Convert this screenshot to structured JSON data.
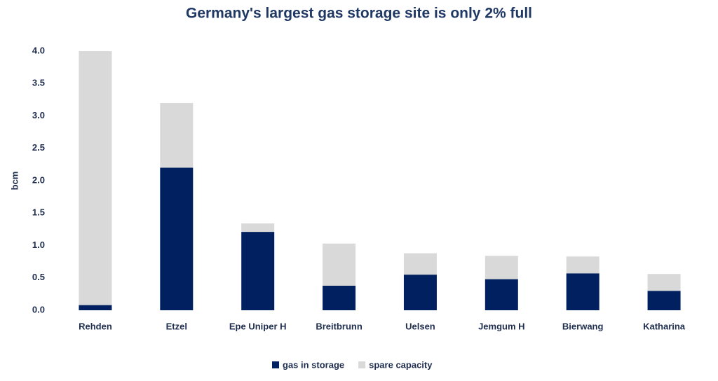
{
  "chart_data": {
    "type": "stacked_bar",
    "title": "Germany's largest gas storage site is only 2% full",
    "y_label": "bcm",
    "categories": [
      "Rehden",
      "Etzel",
      "Epe Uniper H",
      "Breitbrunn",
      "Uelsen",
      "Jemgum H",
      "Bierwang",
      "Katharina"
    ],
    "series": [
      {
        "name": "gas in storage",
        "color": "#002060",
        "values": [
          0.08,
          2.2,
          1.21,
          0.38,
          0.55,
          0.48,
          0.57,
          0.3
        ]
      },
      {
        "name": "spare capacity",
        "color": "#d9d9d9",
        "values": [
          3.92,
          1.0,
          0.13,
          0.65,
          0.33,
          0.36,
          0.26,
          0.26
        ]
      }
    ],
    "ylim": [
      0,
      4
    ],
    "yticks": [
      {
        "value": 0,
        "label": "0.0"
      },
      0.5,
      {
        "value": 1,
        "label": "1.0"
      },
      1.5,
      {
        "value": 2,
        "label": "2.0"
      },
      2.5,
      {
        "value": 3,
        "label": "3.0"
      },
      3.5,
      {
        "value": 4,
        "label": "4.0"
      }
    ],
    "legend": "bottom"
  }
}
